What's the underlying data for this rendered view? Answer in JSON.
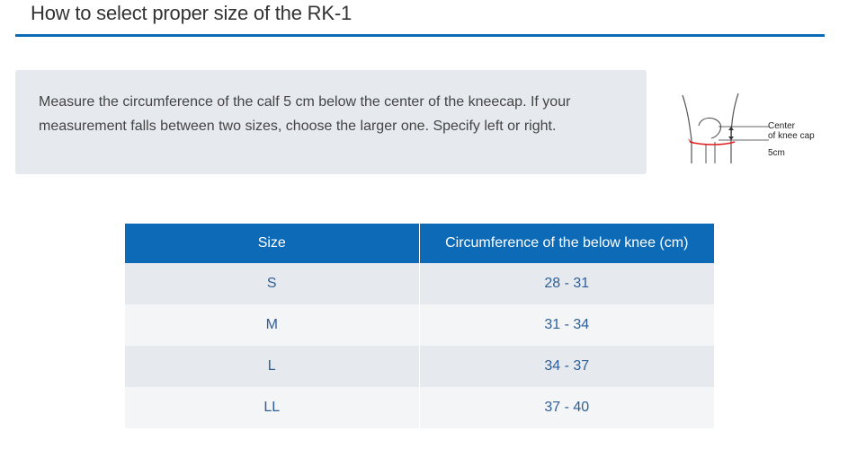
{
  "page": {
    "title": "How to select proper size of the RK-1"
  },
  "info": {
    "line1": "Measure the circumference of the calf 5 cm below the center of the kneecap. If your",
    "line2": "measurement falls between two sizes, choose the larger one. Specify left or right."
  },
  "diagram": {
    "label_center_line1": "Center",
    "label_center_line2": "of knee cap",
    "label_distance": "5cm",
    "arrow_color": "#e02020"
  },
  "table": {
    "headers": [
      "Size",
      "Circumference of the below knee (cm)"
    ],
    "rows": [
      {
        "size": "S",
        "range": "28 - 31"
      },
      {
        "size": "M",
        "range": "31 - 34"
      },
      {
        "size": "L",
        "range": "34 - 37"
      },
      {
        "size": "LL",
        "range": "37 - 40"
      }
    ]
  },
  "colors": {
    "accent": "#0d6ab7",
    "row_dark": "#e6eaef",
    "row_light": "#f3f5f7",
    "value_text": "#2f5f95"
  }
}
